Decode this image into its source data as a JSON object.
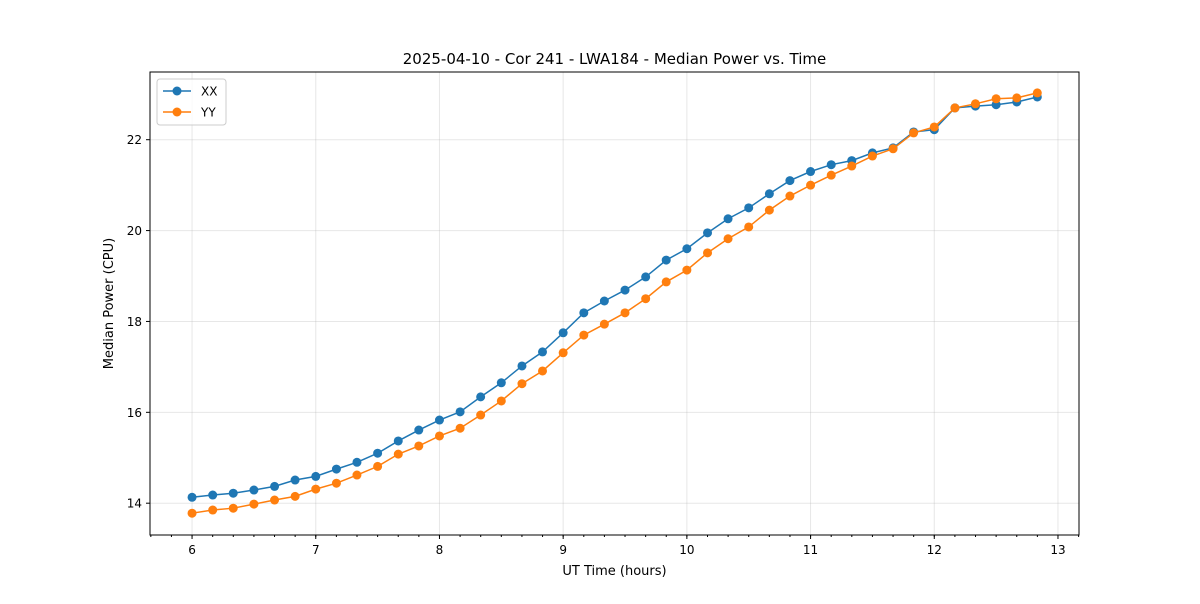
{
  "chart_data": {
    "type": "line",
    "title": "2025-04-10 - Cor 241 - LWA184 - Median Power vs. Time",
    "xlabel": "UT Time (hours)",
    "ylabel": "Median Power (CPU)",
    "xlim": [
      5.66,
      13.17
    ],
    "ylim": [
      13.3,
      23.49
    ],
    "xticks": [
      6,
      7,
      8,
      9,
      10,
      11,
      12,
      13
    ],
    "xtick_labels": [
      "6",
      "7",
      "8",
      "9",
      "10",
      "11",
      "12",
      "13"
    ],
    "yticks": [
      14,
      16,
      18,
      20,
      22
    ],
    "ytick_labels": [
      "14",
      "16",
      "18",
      "20",
      "22"
    ],
    "x_minor_step": 0.16667,
    "grid": true,
    "legend_position": "top-left",
    "x": [
      6,
      6.167,
      6.333,
      6.5,
      6.667,
      6.833,
      7,
      7.167,
      7.333,
      7.5,
      7.667,
      7.833,
      8,
      8.167,
      8.333,
      8.5,
      8.667,
      8.833,
      9,
      9.167,
      9.333,
      9.5,
      9.667,
      9.833,
      10,
      10.167,
      10.333,
      10.5,
      10.667,
      10.833,
      11,
      11.167,
      11.333,
      11.5,
      11.667,
      11.833,
      12,
      12.167,
      12.333,
      12.5,
      12.667,
      12.833
    ],
    "series": [
      {
        "name": "XX",
        "color": "#1f77b4",
        "values": [
          14.13,
          14.18,
          14.22,
          14.29,
          14.37,
          14.51,
          14.59,
          14.75,
          14.9,
          15.1,
          15.37,
          15.61,
          15.83,
          16.01,
          16.34,
          16.65,
          17.02,
          17.33,
          17.75,
          18.19,
          18.45,
          18.69,
          18.98,
          19.35,
          19.6,
          19.95,
          20.26,
          20.5,
          20.81,
          21.1,
          21.3,
          21.45,
          21.54,
          21.71,
          21.82,
          22.17,
          22.22,
          22.7,
          22.74,
          22.77,
          22.83,
          22.94
        ]
      },
      {
        "name": "YY",
        "color": "#ff7f0e",
        "values": [
          13.78,
          13.85,
          13.89,
          13.98,
          14.07,
          14.15,
          14.31,
          14.44,
          14.62,
          14.81,
          15.08,
          15.26,
          15.48,
          15.65,
          15.94,
          16.25,
          16.63,
          16.91,
          17.31,
          17.7,
          17.94,
          18.19,
          18.5,
          18.87,
          19.13,
          19.51,
          19.82,
          20.08,
          20.45,
          20.76,
          21.0,
          21.22,
          21.42,
          21.64,
          21.8,
          22.15,
          22.28,
          22.7,
          22.79,
          22.9,
          22.92,
          23.03
        ]
      }
    ]
  }
}
